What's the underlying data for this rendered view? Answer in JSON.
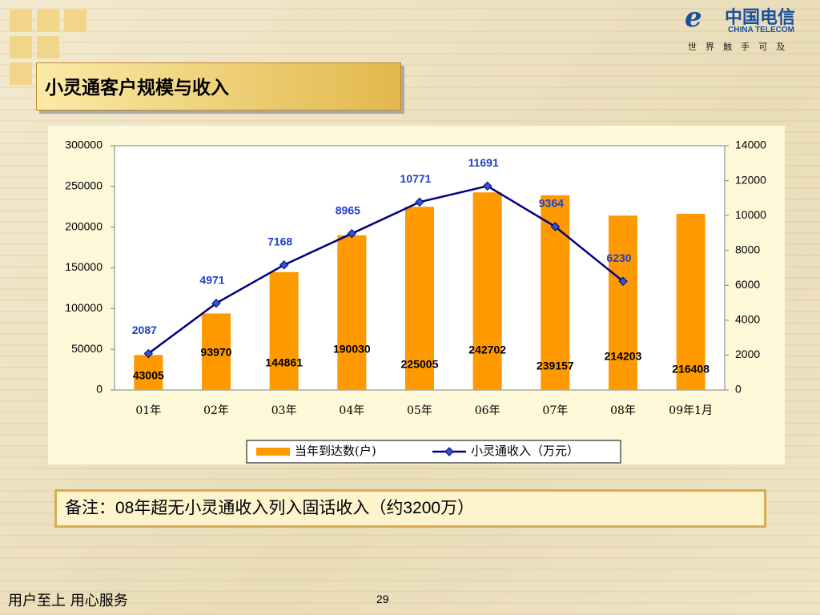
{
  "logo": {
    "name": "中国电信",
    "english": "CHINA TELECOM",
    "slogan": "世 界 触 手 可 及"
  },
  "slide_title": "小灵通客户规模与收入",
  "note": "备注：08年超无小灵通收入列入固话收入（约3200万）",
  "footer": "用户至上  用心服务",
  "page_number": "29",
  "chart_data": {
    "type": "combo",
    "categories": [
      "01年",
      "02年",
      "03年",
      "04年",
      "05年",
      "06年",
      "07年",
      "08年",
      "09年1月"
    ],
    "series": [
      {
        "name": "当年到达数(户)",
        "type": "bar",
        "color": "#ff9900",
        "values": [
          43005,
          93970,
          144861,
          190030,
          225005,
          242702,
          239157,
          214203,
          216408
        ]
      },
      {
        "name": "小灵通收入（万元）",
        "type": "line",
        "axis": "y2",
        "color": "#000080",
        "values": [
          2087,
          4971,
          7168,
          8965,
          10771,
          11691,
          9364,
          6230,
          null
        ]
      }
    ],
    "ylim": [
      0,
      300000
    ],
    "yticks": [
      0,
      50000,
      100000,
      150000,
      200000,
      250000,
      300000
    ],
    "y2lim": [
      0,
      14000
    ],
    "y2ticks": [
      0,
      2000,
      4000,
      6000,
      8000,
      10000,
      12000,
      14000
    ],
    "legend": "bottom"
  }
}
